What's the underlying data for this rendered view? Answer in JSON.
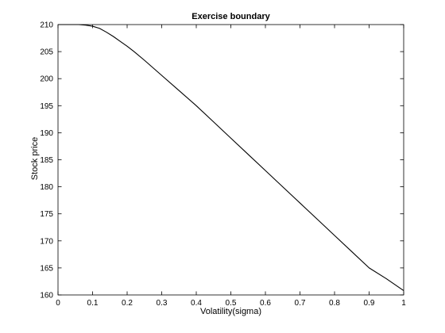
{
  "chart_data": {
    "type": "line",
    "title": "Exercise boundary",
    "xlabel": "Volatility(sigma)",
    "ylabel": "Stock price",
    "xlim": [
      0,
      1
    ],
    "ylim": [
      160,
      210
    ],
    "x_ticks": [
      0,
      0.1,
      0.2,
      0.3,
      0.4,
      0.5,
      0.6,
      0.7,
      0.8,
      0.9,
      1
    ],
    "x_tick_labels": [
      "0",
      "0.1",
      "0.2",
      "0.3",
      "0.4",
      "0.5",
      "0.6",
      "0.7",
      "0.8",
      "0.9",
      "1"
    ],
    "y_ticks": [
      160,
      165,
      170,
      175,
      180,
      185,
      190,
      195,
      200,
      205,
      210
    ],
    "y_tick_labels": [
      "160",
      "165",
      "170",
      "175",
      "180",
      "185",
      "190",
      "195",
      "200",
      "205",
      "210"
    ],
    "grid": false,
    "series": [
      {
        "color": "#000000",
        "x": [
          0,
          0.02,
          0.04,
          0.06,
          0.08,
          0.1,
          0.12,
          0.14,
          0.16,
          0.18,
          0.2,
          0.22,
          0.25,
          0.3,
          0.35,
          0.4,
          0.45,
          0.5,
          0.55,
          0.6,
          0.65,
          0.7,
          0.75,
          0.8,
          0.85,
          0.9,
          0.95,
          1.0
        ],
        "y": [
          210,
          210,
          210,
          210,
          209.9,
          209.7,
          209.3,
          208.6,
          207.8,
          206.9,
          206.0,
          205.0,
          203.4,
          200.6,
          197.8,
          195.0,
          192.0,
          189.0,
          186.0,
          183.0,
          180.0,
          177.0,
          174.0,
          171.0,
          168.0,
          165.0,
          163.0,
          160.8
        ]
      }
    ]
  }
}
